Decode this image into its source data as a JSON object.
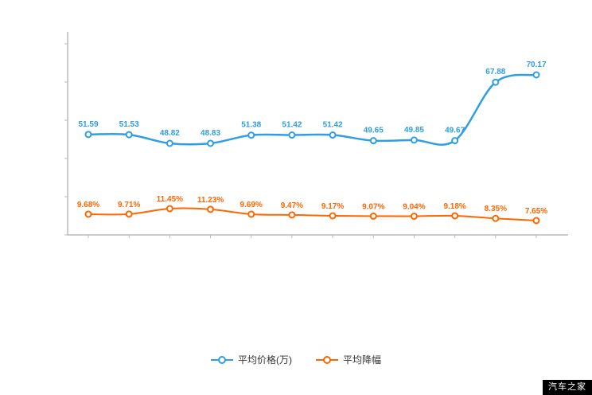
{
  "chart_data": {
    "type": "line",
    "title": "",
    "legend_position": "bottom",
    "grid": false,
    "x_axis_labels_visible": false,
    "y_axis_labels_visible": false,
    "series": [
      {
        "name": "平均价格(万)",
        "color": "#2f9ee3",
        "values": [
          51.59,
          51.53,
          48.82,
          48.83,
          51.38,
          51.42,
          51.42,
          49.65,
          49.85,
          49.67,
          67.88,
          70.17
        ],
        "labels": [
          "51.59",
          "51.53",
          "48.82",
          "48.83",
          "51.38",
          "51.42",
          "51.42",
          "49.65",
          "49.85",
          "49.67",
          "67.88",
          "70.17"
        ]
      },
      {
        "name": "平均降幅",
        "color": "#ff6600",
        "values": [
          9.68,
          9.71,
          11.45,
          11.23,
          9.69,
          9.47,
          9.17,
          9.07,
          9.04,
          9.18,
          8.35,
          7.65
        ],
        "labels": [
          "9.68%",
          "9.71%",
          "11.45%",
          "11.23%",
          "9.69%",
          "9.47%",
          "9.17%",
          "9.07%",
          "9.04%",
          "9.18%",
          "8.35%",
          "7.65%"
        ]
      }
    ],
    "axis_color": "#999999",
    "tick_color": "#bbbbbb"
  },
  "watermark": "汽车之家"
}
